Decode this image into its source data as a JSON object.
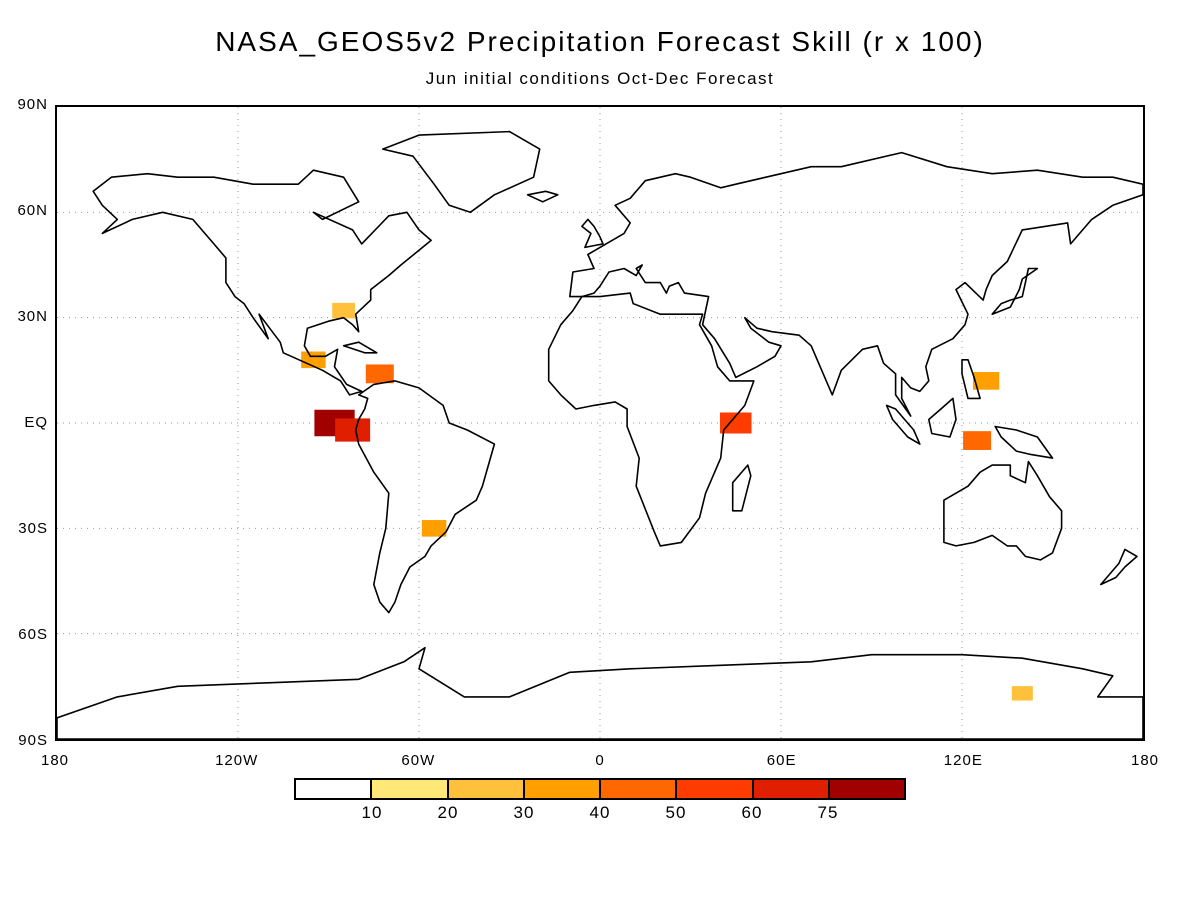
{
  "figure": {
    "title": "NASA_GEOS5v2 Precipitation Forecast Skill (r x 100)",
    "subtitle": "Jun initial conditions   Oct-Dec Forecast"
  },
  "map": {
    "projection": "equirectangular",
    "lon_range": [
      -180,
      180
    ],
    "lat_range": [
      -90,
      90
    ],
    "grid": "dotted",
    "lat_labels": [
      "90N",
      "60N",
      "30N",
      "EQ",
      "30S",
      "60S",
      "90S"
    ],
    "lon_labels": [
      "180",
      "120W",
      "60W",
      "0",
      "60E",
      "120E",
      "180"
    ],
    "skill_regions": [
      {
        "name": "Galapagos / equatorial east Pacific",
        "lon": -88,
        "lat": 0,
        "r": 75
      },
      {
        "name": "Ecuador coast",
        "lon": -82,
        "lat": -2,
        "r": 60
      },
      {
        "name": "Caribbean",
        "lon": -73,
        "lat": 14,
        "r": 40
      },
      {
        "name": "Central America",
        "lon": -95,
        "lat": 18,
        "r": 30
      },
      {
        "name": "East Africa",
        "lon": 45,
        "lat": 0,
        "r": 50
      },
      {
        "name": "Maritime Continent",
        "lon": 125,
        "lat": -5,
        "r": 40
      },
      {
        "name": "Philippines",
        "lon": 128,
        "lat": 12,
        "r": 35
      },
      {
        "name": "Southeast South America",
        "lon": -55,
        "lat": -30,
        "r": 30
      },
      {
        "name": "Southeast United States",
        "lon": -85,
        "lat": 32,
        "r": 25
      },
      {
        "name": "Southern Ocean south of Australia",
        "lon": 140,
        "lat": -77,
        "r": 20
      }
    ]
  },
  "colorbar": {
    "labels": [
      "10",
      "20",
      "30",
      "40",
      "50",
      "60",
      "75"
    ],
    "colors": [
      "#ffffff",
      "#ffe878",
      "#ffc03c",
      "#ffa000",
      "#ff6800",
      "#ff3c00",
      "#e01e00",
      "#a00000"
    ]
  }
}
